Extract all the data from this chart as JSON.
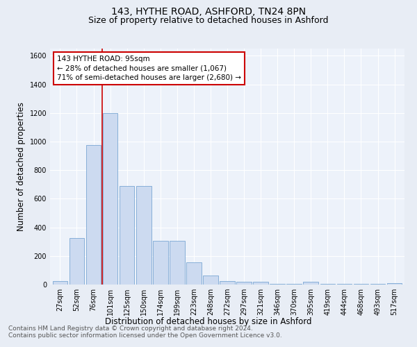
{
  "title": "143, HYTHE ROAD, ASHFORD, TN24 8PN",
  "subtitle": "Size of property relative to detached houses in Ashford",
  "xlabel": "Distribution of detached houses by size in Ashford",
  "ylabel": "Number of detached properties",
  "footnote1": "Contains HM Land Registry data © Crown copyright and database right 2024.",
  "footnote2": "Contains public sector information licensed under the Open Government Licence v3.0.",
  "annotation_line1": "143 HYTHE ROAD: 95sqm",
  "annotation_line2": "← 28% of detached houses are smaller (1,067)",
  "annotation_line3": "71% of semi-detached houses are larger (2,680) →",
  "bar_labels": [
    "27sqm",
    "52sqm",
    "76sqm",
    "101sqm",
    "125sqm",
    "150sqm",
    "174sqm",
    "199sqm",
    "223sqm",
    "248sqm",
    "272sqm",
    "297sqm",
    "321sqm",
    "346sqm",
    "370sqm",
    "395sqm",
    "419sqm",
    "444sqm",
    "468sqm",
    "493sqm",
    "517sqm"
  ],
  "bar_values": [
    25,
    325,
    975,
    1200,
    690,
    690,
    305,
    305,
    155,
    65,
    25,
    20,
    20,
    5,
    5,
    20,
    5,
    5,
    5,
    5,
    10
  ],
  "bar_color": "#ccdaf0",
  "bar_edge_color": "#6699cc",
  "background_color": "#e8edf5",
  "plot_bg_color": "#edf2fa",
  "red_line_x": 2.5,
  "red_line_color": "#cc0000",
  "ylim": [
    0,
    1650
  ],
  "yticks": [
    0,
    200,
    400,
    600,
    800,
    1000,
    1200,
    1400,
    1600
  ],
  "annotation_box_color": "#ffffff",
  "annotation_box_edge": "#cc0000",
  "title_fontsize": 10,
  "subtitle_fontsize": 9,
  "axis_label_fontsize": 8.5,
  "tick_fontsize": 7,
  "footnote_fontsize": 6.5,
  "annotation_fontsize": 7.5
}
